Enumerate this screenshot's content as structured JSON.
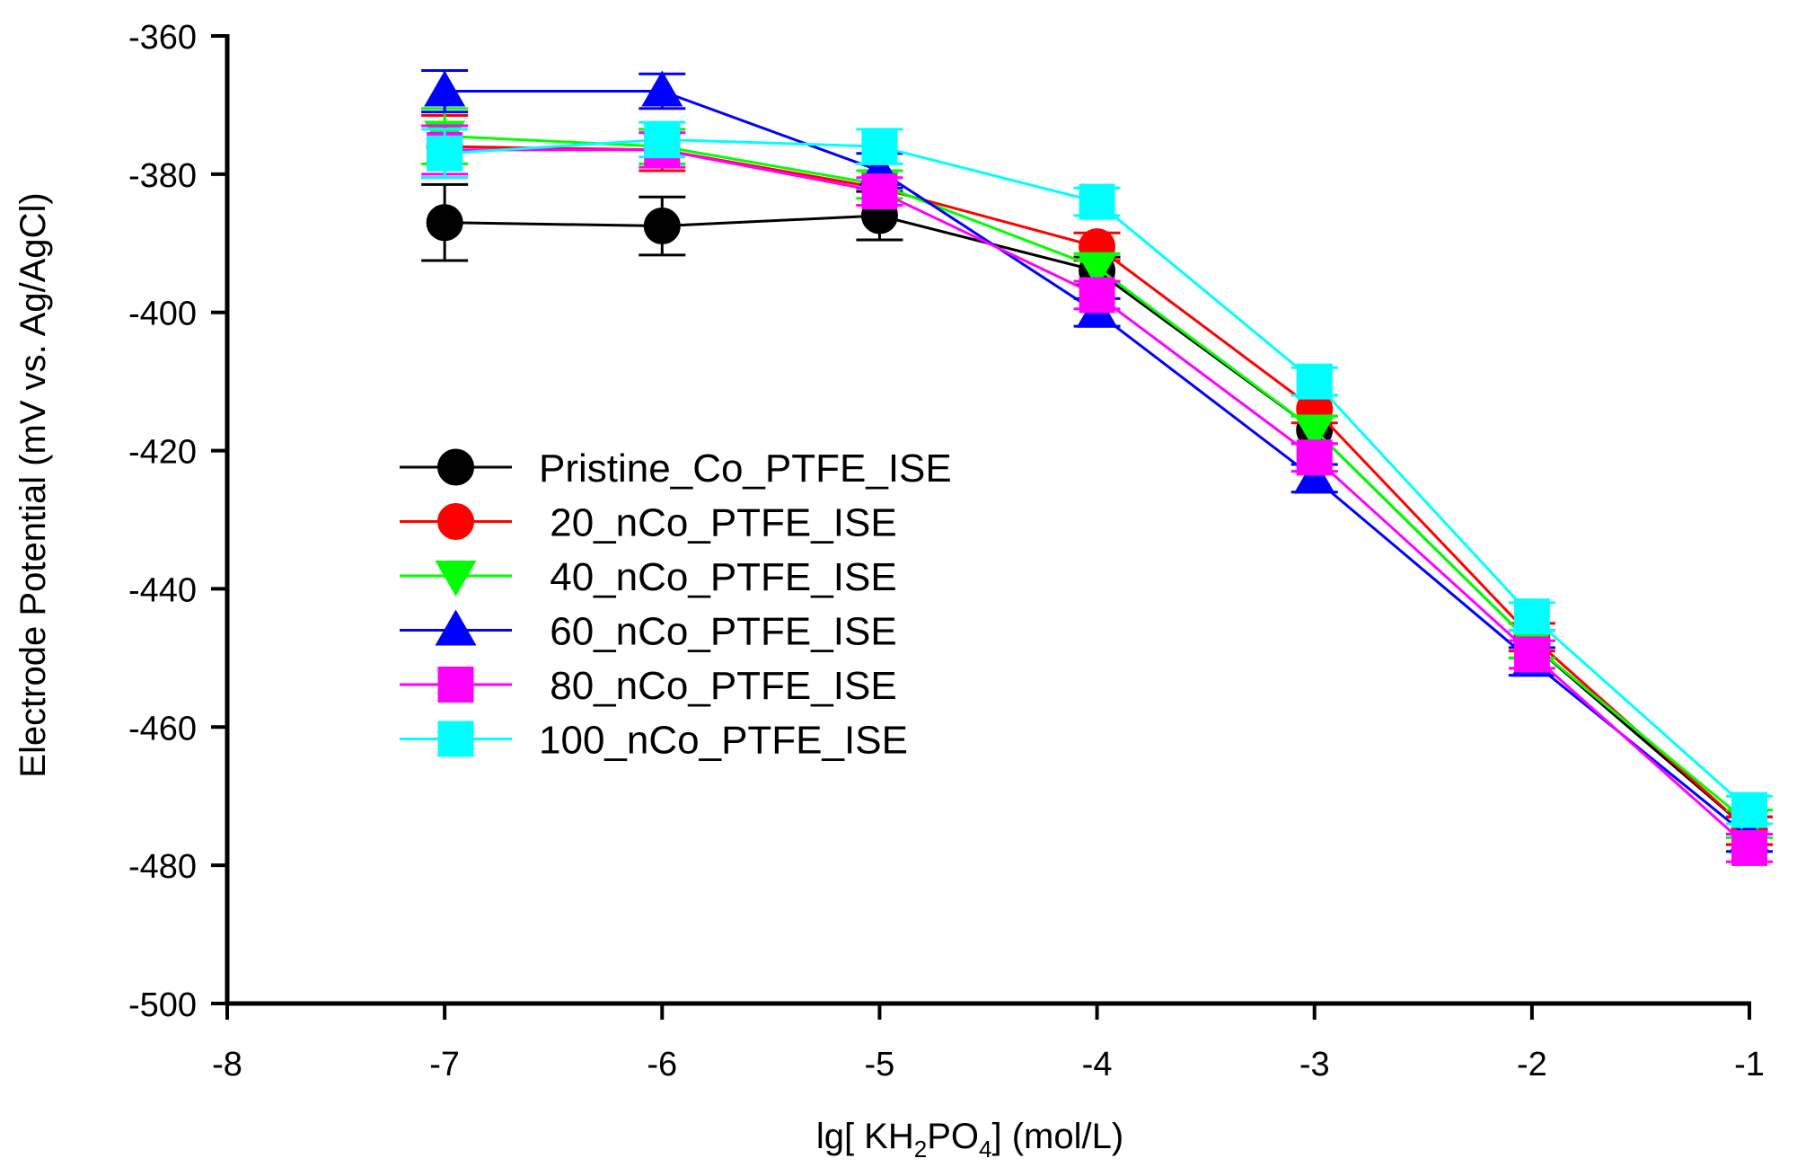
{
  "chart_data": {
    "type": "line",
    "title": "",
    "xlabel_prefix": "lg[ KH",
    "xlabel_sub1": "2",
    "xlabel_mid": "PO",
    "xlabel_sub2": "4",
    "xlabel_suffix": "] (mol/L)",
    "ylabel": "Electrode Potential (mV vs. Ag/AgCl)",
    "xlim": [
      -8,
      -1
    ],
    "ylim": [
      -500,
      -360
    ],
    "xticks": [
      -8,
      -7,
      -6,
      -5,
      -4,
      -3,
      -2,
      -1
    ],
    "yticks": [
      -360,
      -380,
      -400,
      -420,
      -440,
      -460,
      -480,
      -500
    ],
    "x": [
      -7,
      -6,
      -5,
      -4,
      -3,
      -2,
      -1
    ],
    "legend_position": "center-left",
    "series": [
      {
        "name": "Pristine_Co_PTFE_ISE",
        "color": "#000000",
        "marker": "circle",
        "values": [
          -387,
          -387.5,
          -386,
          -394,
          -417,
          -448,
          -475
        ],
        "errors": [
          5.5,
          4.2,
          3.5,
          2,
          2,
          2,
          2
        ]
      },
      {
        "name": " 20_nCo_PTFE_ISE",
        "color": "#ff0000",
        "marker": "circle",
        "values": [
          -376,
          -376.5,
          -382,
          -390.5,
          -414,
          -447,
          -475
        ],
        "errors": [
          4.5,
          3,
          2.5,
          2,
          2,
          2,
          2
        ]
      },
      {
        "name": " 40_nCo_PTFE_ISE",
        "color": "#00ff00",
        "marker": "triangle-down",
        "values": [
          -374.5,
          -376,
          -381.5,
          -393.5,
          -417,
          -448,
          -474
        ],
        "errors": [
          4,
          2.5,
          2,
          2,
          2,
          2,
          2
        ]
      },
      {
        "name": " 60_nCo_PTFE_ISE",
        "color": "#0000ff",
        "marker": "triangle-up",
        "values": [
          -368,
          -368,
          -379.5,
          -400,
          -424,
          -450.5,
          -476
        ],
        "errors": [
          3,
          2.5,
          2.5,
          2,
          2,
          2,
          2
        ]
      },
      {
        "name": " 80_nCo_PTFE_ISE",
        "color": "#ff00ff",
        "marker": "square",
        "values": [
          -376.5,
          -376.5,
          -382.5,
          -397.5,
          -421,
          -449.5,
          -477.5
        ],
        "errors": [
          3.5,
          2.5,
          2,
          2,
          2,
          2,
          2
        ]
      },
      {
        "name": "100_nCo_PTFE_ISE",
        "color": "#00ffff",
        "marker": "square",
        "values": [
          -377,
          -375,
          -376,
          -384,
          -410,
          -444,
          -472
        ],
        "errors": [
          3.5,
          2.5,
          2.5,
          2,
          2,
          2,
          2
        ]
      }
    ]
  }
}
